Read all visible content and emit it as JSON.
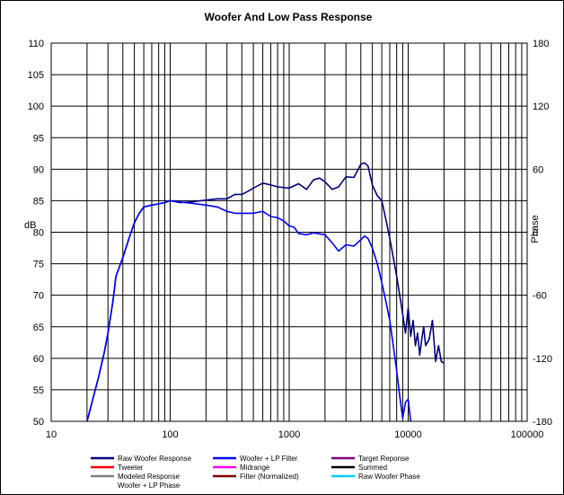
{
  "chart_data": {
    "type": "line",
    "title": "Woofer  And Low Pass Response",
    "xlabel": "",
    "ylabel": "dB",
    "y2label": "Phase",
    "xscale": "log",
    "xlim": [
      10,
      100000
    ],
    "ylim": [
      50,
      110
    ],
    "y2lim": [
      -180,
      180
    ],
    "x_ticks": [
      "10",
      "100",
      "1000",
      "10000",
      "100000"
    ],
    "y_ticks": [
      "50",
      "55",
      "60",
      "65",
      "70",
      "75",
      "80",
      "85",
      "90",
      "95",
      "100",
      "105",
      "110"
    ],
    "y2_ticks": [
      "-180",
      "-120",
      "-60",
      "0",
      "60",
      "120",
      "180"
    ],
    "grid": true,
    "legend_position": "bottom",
    "series": [
      {
        "name": "Raw Woofer Response",
        "color": "#000080",
        "x": [
          20,
          22,
          25,
          28,
          30,
          33,
          35,
          40,
          45,
          50,
          55,
          60,
          70,
          80,
          90,
          100,
          120,
          150,
          200,
          250,
          300,
          350,
          400,
          450,
          500,
          600,
          700,
          800,
          1000,
          1200,
          1400,
          1600,
          1800,
          2000,
          2300,
          2600,
          3000,
          3500,
          4000,
          4300,
          4600,
          5000,
          5500,
          6000,
          6500,
          7000,
          7500,
          8000,
          8500,
          9000,
          9500,
          10000,
          10500,
          11000,
          11500,
          12000,
          12500,
          13000,
          13500,
          14000,
          15000,
          16000,
          17000,
          18000,
          19000,
          20000
        ],
        "y": [
          50,
          53,
          57,
          61,
          64,
          69,
          73,
          76,
          79,
          81.5,
          83,
          84,
          84.3,
          84.5,
          84.7,
          85,
          84.7,
          84.8,
          85.1,
          85.3,
          85.3,
          86,
          86,
          86.5,
          87,
          87.8,
          87.5,
          87.2,
          87,
          87.7,
          86.8,
          88.3,
          88.6,
          88,
          86.8,
          87.2,
          88.8,
          88.7,
          90.8,
          91,
          90.5,
          87.5,
          85.8,
          85,
          82,
          79,
          76,
          73,
          70,
          67,
          64,
          68,
          63.5,
          66,
          62,
          64,
          60.5,
          63,
          65,
          62,
          63,
          66,
          59.5,
          62,
          59.5,
          59.2
        ]
      },
      {
        "name": "Woofer + LP Filter",
        "color": "#0000ff",
        "x": [
          20,
          22,
          25,
          28,
          30,
          33,
          35,
          40,
          45,
          50,
          55,
          60,
          70,
          80,
          90,
          100,
          120,
          150,
          200,
          250,
          300,
          350,
          400,
          500,
          600,
          700,
          800,
          900,
          1000,
          1100,
          1200,
          1400,
          1600,
          2000,
          2300,
          2600,
          3000,
          3500,
          4000,
          4300,
          4600,
          5000,
          5500,
          6000,
          6500,
          7000,
          7500,
          8000,
          8500,
          9000,
          9500,
          10000,
          10500
        ],
        "y": [
          50,
          53,
          57,
          61,
          64,
          69,
          73,
          76,
          79,
          81.5,
          83,
          84,
          84.3,
          84.5,
          84.7,
          85,
          84.8,
          84.6,
          84.3,
          84,
          83.3,
          83,
          83,
          83,
          83.3,
          82.5,
          82.3,
          81.8,
          81,
          80.8,
          79.8,
          79.6,
          79.9,
          79.6,
          78.3,
          77,
          78,
          77.8,
          78.8,
          79.4,
          79,
          77.5,
          75,
          72,
          69,
          66,
          62,
          58,
          54,
          50.5,
          53,
          53.5,
          50
        ]
      },
      {
        "name": "Target Reponse",
        "color": "#800080",
        "x": [],
        "y": []
      },
      {
        "name": "Tweeter",
        "color": "#ff0000",
        "x": [],
        "y": []
      },
      {
        "name": "Midrange",
        "color": "#ff00ff",
        "x": [],
        "y": []
      },
      {
        "name": "Summed",
        "color": "#000000",
        "x": [],
        "y": []
      },
      {
        "name": "Modeled Response",
        "color": "#808080",
        "x": [],
        "y": []
      },
      {
        "name": "Filter (Normalized)",
        "color": "#800000",
        "x": [],
        "y": []
      },
      {
        "name": "Raw Woofer Phase",
        "color": "#00ccff",
        "x": [],
        "y": []
      },
      {
        "name": "Woofer + LP Phase",
        "color": "#ffffff",
        "x": [],
        "y": []
      }
    ]
  }
}
